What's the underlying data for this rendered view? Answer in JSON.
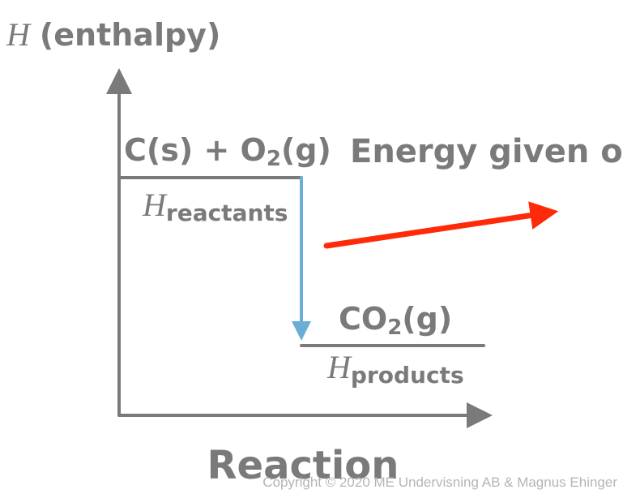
{
  "y_axis_label": {
    "symbol": "H",
    "text": "(enthalpy)"
  },
  "x_axis_label": "Reaction",
  "reactants": {
    "formula": [
      "C(s) + O",
      "2",
      "(g)"
    ],
    "symbol": "H",
    "subscript": "reactants"
  },
  "products": {
    "formula": [
      "CO",
      "2",
      "(g)"
    ],
    "symbol": "H",
    "subscript": "products"
  },
  "annotation": "Energy given off",
  "copyright": "Copyright © 2020 ME Undervisning AB & Magnus Ehinger"
}
